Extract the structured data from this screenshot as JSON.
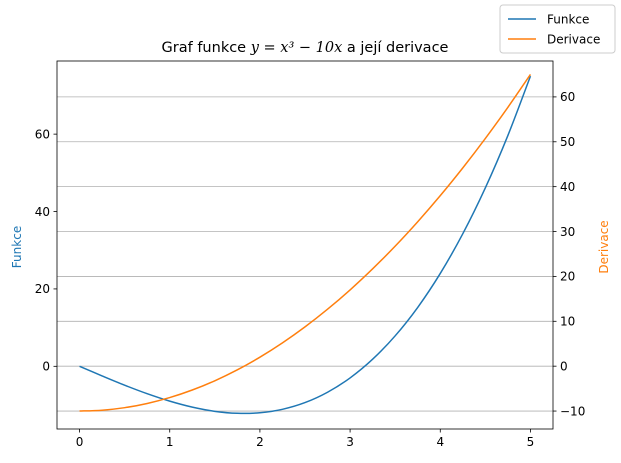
{
  "chart_data": {
    "type": "line",
    "title_prefix": "Graf funkce ",
    "title_math": "y = x³ − 10x",
    "title_suffix": " a její derivace",
    "xlabel": "",
    "ylabel_left": "Funkce",
    "ylabel_right": "Derivace",
    "xlim": [
      -0.25,
      5.25
    ],
    "ylim_left": [
      -16.2,
      78.9
    ],
    "ylim_right": [
      -14.0,
      68.0
    ],
    "x_ticks": [
      0,
      1,
      2,
      3,
      4,
      5
    ],
    "x_tick_labels": [
      "0",
      "1",
      "2",
      "3",
      "4",
      "5"
    ],
    "y_left_ticks": [
      0,
      20,
      40,
      60
    ],
    "y_left_tick_labels": [
      "0",
      "20",
      "40",
      "60"
    ],
    "y_right_ticks": [
      -10,
      0,
      10,
      20,
      30,
      40,
      50,
      60
    ],
    "y_right_tick_labels": [
      "−10",
      "0",
      "10",
      "20",
      "30",
      "40",
      "50",
      "60"
    ],
    "grid": "right-axis horizontal",
    "legend_placement": "figure top-right",
    "colors": {
      "series_function": "#1f77b4",
      "series_derivative": "#ff7f0e",
      "grid": "#b0b0b0"
    },
    "series": [
      {
        "name": "Funkce",
        "axis": "left",
        "x": [
          0,
          0.25,
          0.5,
          0.75,
          1,
          1.25,
          1.5,
          1.75,
          2,
          2.25,
          2.5,
          2.75,
          3,
          3.25,
          3.5,
          3.75,
          4,
          4.25,
          4.5,
          4.75,
          5
        ],
        "y": [
          0,
          -2.48,
          -4.88,
          -7.08,
          -9,
          -10.55,
          -11.63,
          -12.14,
          -12,
          -11.11,
          -9.38,
          -6.7,
          -3,
          1.83,
          7.88,
          15.23,
          24,
          34.27,
          46.13,
          59.67,
          75
        ]
      },
      {
        "name": "Derivace",
        "axis": "right",
        "x": [
          0,
          0.25,
          0.5,
          0.75,
          1,
          1.25,
          1.5,
          1.75,
          2,
          2.25,
          2.5,
          2.75,
          3,
          3.25,
          3.5,
          3.75,
          4,
          4.25,
          4.5,
          4.75,
          5
        ],
        "y": [
          -10,
          -9.81,
          -9.25,
          -8.31,
          -7,
          -5.31,
          -3.25,
          -0.81,
          2,
          5.19,
          8.75,
          12.69,
          17,
          21.69,
          26.75,
          32.19,
          38,
          44.19,
          50.75,
          57.69,
          65
        ]
      }
    ]
  }
}
